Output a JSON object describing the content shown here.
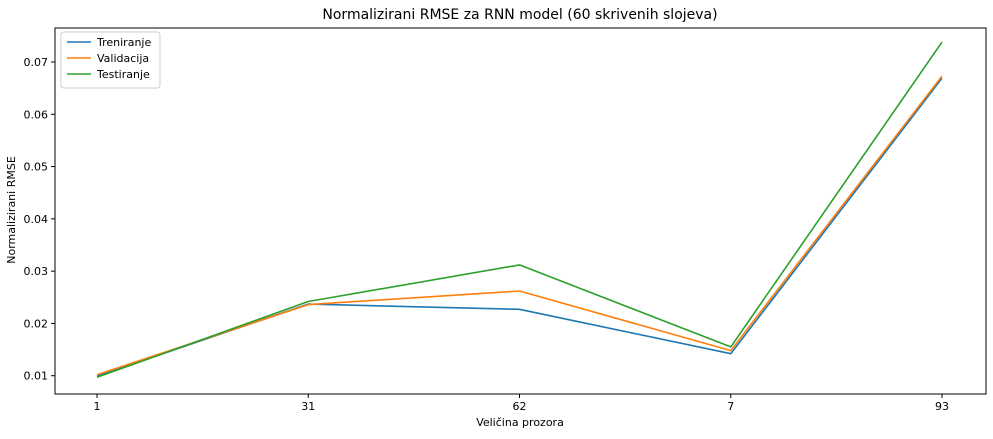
{
  "chart_data": {
    "type": "line",
    "title": "Normalizirani RMSE za RNN model (60 skrivenih slojeva)",
    "xlabel": "Veličina prozora",
    "ylabel": "Normalizirani RMSE",
    "categories": [
      "1",
      "31",
      "62",
      "7",
      "93"
    ],
    "ylim": [
      0.0065,
      0.0765
    ],
    "yticks": [
      "0.01",
      "0.02",
      "0.03",
      "0.04",
      "0.05",
      "0.06",
      "0.07"
    ],
    "yticks_values": [
      0.01,
      0.02,
      0.03,
      0.04,
      0.05,
      0.06,
      0.07
    ],
    "grid": false,
    "legend_position": "top-left",
    "series": [
      {
        "name": "Treniranje",
        "color": "#1f77b4",
        "values": [
          0.0099,
          0.0237,
          0.0227,
          0.0142,
          0.0669
        ]
      },
      {
        "name": "Validacija",
        "color": "#ff7f0e",
        "values": [
          0.0102,
          0.0236,
          0.0262,
          0.0148,
          0.0673
        ]
      },
      {
        "name": "Testiranje",
        "color": "#2ca02c",
        "values": [
          0.0097,
          0.0242,
          0.0312,
          0.0155,
          0.0738
        ]
      }
    ]
  }
}
